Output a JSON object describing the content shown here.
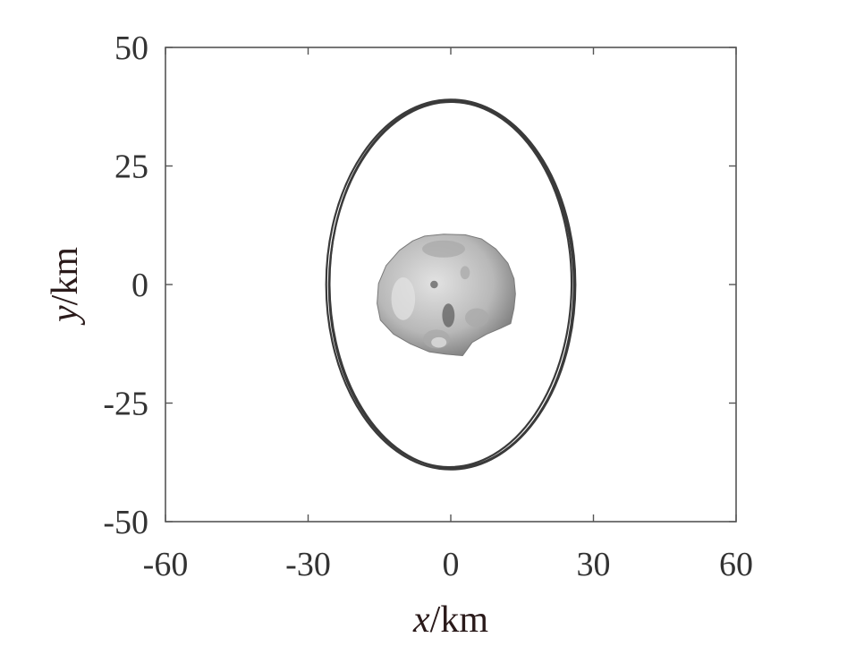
{
  "chart_data": {
    "type": "line",
    "title": "",
    "xlabel_var": "x",
    "xlabel_unit": "/km",
    "ylabel_var": "y",
    "ylabel_unit": "/km",
    "xlim": [
      -60,
      60
    ],
    "ylim": [
      -50,
      50
    ],
    "xticks": [
      -60,
      -30,
      0,
      30,
      60
    ],
    "yticks": [
      50,
      25,
      0,
      -25,
      -50
    ],
    "xtick_labels": [
      "-60",
      "-30",
      "0",
      "30",
      "60"
    ],
    "ytick_labels": [
      "50",
      "25",
      "0",
      "-25",
      "-50"
    ],
    "grid": false,
    "legend": "none",
    "orbit_color": "#3a3a3a",
    "series": [
      {
        "center": [
          0.0,
          0.0
        ],
        "semi_axis_x": 26.2,
        "semi_axis_y": 39.0,
        "tilt_deg": 0.0
      },
      {
        "center": [
          0.2,
          0.0
        ],
        "semi_axis_x": 25.7,
        "semi_axis_y": 38.7,
        "tilt_deg": 0.4
      },
      {
        "center": [
          -0.1,
          0.0
        ],
        "semi_axis_x": 25.5,
        "semi_axis_y": 38.5,
        "tilt_deg": -0.5
      }
    ],
    "body": {
      "name_icon": "asteroid-shape",
      "outline": [
        [
          -5.5,
          10.2
        ],
        [
          -1.5,
          10.6
        ],
        [
          3.0,
          10.5
        ],
        [
          6.5,
          9.6
        ],
        [
          9.5,
          7.5
        ],
        [
          12.0,
          4.5
        ],
        [
          13.3,
          1.2
        ],
        [
          13.6,
          -2.0
        ],
        [
          13.3,
          -5.0
        ],
        [
          12.6,
          -8.2
        ],
        [
          10.5,
          -9.2
        ],
        [
          7.5,
          -10.5
        ],
        [
          4.5,
          -12.2
        ],
        [
          2.5,
          -15.0
        ],
        [
          -1.0,
          -14.7
        ],
        [
          -4.5,
          -14.2
        ],
        [
          -8.5,
          -12.5
        ],
        [
          -12.0,
          -10.5
        ],
        [
          -14.8,
          -7.5
        ],
        [
          -15.5,
          -4.0
        ],
        [
          -15.2,
          0.2
        ],
        [
          -13.6,
          4.0
        ],
        [
          -10.8,
          7.2
        ],
        [
          -8.0,
          9.2
        ]
      ],
      "colors": {
        "light": "#e2e2e2",
        "mid": "#a9a9a9",
        "dark": "#5f5f5f"
      }
    }
  }
}
